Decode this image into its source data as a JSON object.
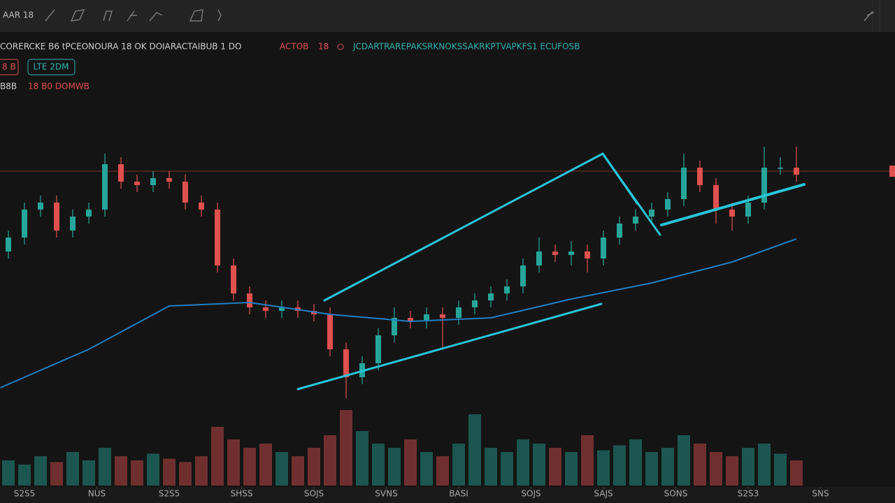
{
  "toolbar": {
    "symbol": "AAR 18"
  },
  "legend": {
    "title": "CORERCKE B6 tPCEONOURA 18 OK DOIARACTAIBUB 1 DO",
    "tag": "ACTOB",
    "tag2": "18",
    "info": "JCDARTRAREPAKSRKNOKSSAKRKPTVAPKFS1 ECUFOSB",
    "badge": "8 B",
    "button": "LTE 2DM",
    "row3_left": "B8B",
    "row3_right": "18 B0 DOMWB"
  },
  "chart_data": {
    "type": "candlestick",
    "up_color": "#26a69a",
    "down_color": "#e0504f",
    "ma_color": "#1f7fc4",
    "ylim": [
      0,
      100
    ],
    "vlim": [
      0,
      100
    ],
    "xticks": [
      {
        "value": 1,
        "label": "S2S5"
      },
      {
        "value": 5.5,
        "label": "NUS"
      },
      {
        "value": 10,
        "label": "S2S5"
      },
      {
        "value": 14.5,
        "label": "SHSS"
      },
      {
        "value": 19,
        "label": "SOJS"
      },
      {
        "value": 23.5,
        "label": "SVNS"
      },
      {
        "value": 28,
        "label": "BASI"
      },
      {
        "value": 32.5,
        "label": "SOJS"
      },
      {
        "value": 37,
        "label": "SAJS"
      },
      {
        "value": 41.5,
        "label": "SONS"
      },
      {
        "value": 46,
        "label": "S2S3"
      },
      {
        "value": 50.5,
        "label": "SNS"
      }
    ],
    "open": [
      55,
      60,
      70,
      72.5,
      62.5,
      67.5,
      70,
      86.25,
      80,
      78.75,
      81.25,
      80,
      72.5,
      70,
      50,
      40,
      35,
      33.75,
      35,
      33.75,
      32.5,
      20,
      10,
      15,
      25,
      31.25,
      30,
      32.5,
      31.25,
      35,
      37.5,
      40,
      42.5,
      50,
      55,
      53.75,
      55,
      52.5,
      60,
      65,
      67.5,
      70,
      73.75,
      85,
      78.75,
      70,
      67.5,
      72.5,
      85,
      85
    ],
    "high": [
      62.5,
      72.5,
      75,
      75,
      70,
      72.5,
      90,
      88.75,
      82.5,
      83.75,
      83.75,
      82.5,
      75,
      72.5,
      52.5,
      42.5,
      37.5,
      37.5,
      37.5,
      36.25,
      35,
      22.5,
      17.5,
      27.5,
      35,
      33.75,
      35,
      35,
      37.5,
      40,
      42.5,
      45,
      52.5,
      60,
      57.5,
      58.75,
      57.5,
      62.5,
      67.5,
      70,
      72.5,
      76.25,
      90,
      87.5,
      81.25,
      72.5,
      75,
      92.5,
      88.75,
      92.5
    ],
    "low": [
      52.5,
      57.5,
      67.5,
      60,
      60,
      65,
      67.5,
      77.5,
      76.25,
      76.25,
      77.5,
      70,
      67.5,
      47.5,
      37.5,
      32.5,
      31.25,
      31.25,
      31.25,
      30,
      17.5,
      2.5,
      7.5,
      12.5,
      22.5,
      27.5,
      27.5,
      20,
      28.75,
      32.5,
      35,
      37.5,
      40,
      47.5,
      51.25,
      50,
      47.5,
      50,
      57.5,
      62.5,
      65,
      67.5,
      71.25,
      76.25,
      65,
      62.5,
      65,
      70,
      82.5,
      80
    ],
    "close": [
      60,
      70,
      72.5,
      62.5,
      67.5,
      70,
      86.25,
      80,
      78.75,
      81.25,
      80,
      72.5,
      70,
      50,
      40,
      35,
      33.75,
      35,
      33.75,
      32.5,
      20,
      10,
      15,
      25,
      31.25,
      30,
      32.5,
      31.25,
      35,
      37.5,
      40,
      42.5,
      50,
      55,
      53.75,
      55,
      52.5,
      60,
      65,
      67.5,
      70,
      73.75,
      85,
      78.75,
      70,
      67.5,
      72.5,
      85,
      85,
      82.5
    ],
    "volume": [
      30,
      25,
      35,
      28,
      40,
      30,
      45,
      35,
      30,
      38,
      32,
      28,
      35,
      70,
      55,
      45,
      50,
      40,
      35,
      45,
      60,
      90,
      65,
      50,
      45,
      55,
      40,
      35,
      50,
      85,
      45,
      40,
      55,
      50,
      45,
      40,
      60,
      42,
      48,
      55,
      40,
      45,
      60,
      50,
      40,
      35,
      45,
      50,
      38,
      30
    ],
    "ma": {
      "x": [
        -0.5,
        5,
        10,
        15,
        20,
        25,
        30,
        35,
        40,
        45,
        49
      ],
      "values": [
        6.25,
        20,
        35.5,
        36.75,
        32.5,
        30,
        31.25,
        38,
        43.75,
        51.25,
        59.5
      ]
    },
    "price_line": 83.75
  }
}
